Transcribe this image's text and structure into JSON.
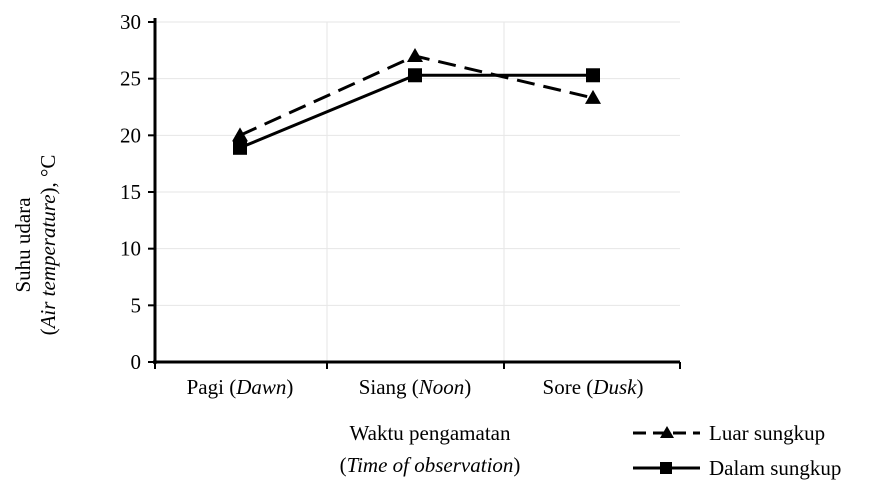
{
  "chart_data": {
    "type": "line",
    "categories": [
      {
        "main": "Pagi (",
        "italic": "Dawn",
        "end": ")"
      },
      {
        "main": "Siang (",
        "italic": "Noon",
        "end": ")"
      },
      {
        "main": "Sore (",
        "italic": "Dusk",
        "end": ")"
      }
    ],
    "series": [
      {
        "name": "Luar sungkup",
        "values": [
          20.0,
          27.0,
          23.3
        ],
        "marker": "triangle",
        "dash": true
      },
      {
        "name": "Dalam sungkup",
        "values": [
          18.9,
          25.3,
          25.3
        ],
        "marker": "square",
        "dash": false
      }
    ],
    "xlabel": {
      "line1": "Waktu pengamatan",
      "line2_open": "(",
      "line2_italic": "Time of observation",
      "line2_close": ")"
    },
    "ylabel": {
      "line1": "Suhu udara",
      "line2_open": "(",
      "line2_italic": "Air temperature",
      "line2_close": "), °C"
    },
    "ylim": [
      0,
      30
    ],
    "yticks": [
      0,
      5,
      10,
      15,
      20,
      25,
      30
    ],
    "grid": true,
    "legend_position": "bottom-right",
    "line_color": "#000000",
    "grid_color": "#e6e6e6"
  }
}
